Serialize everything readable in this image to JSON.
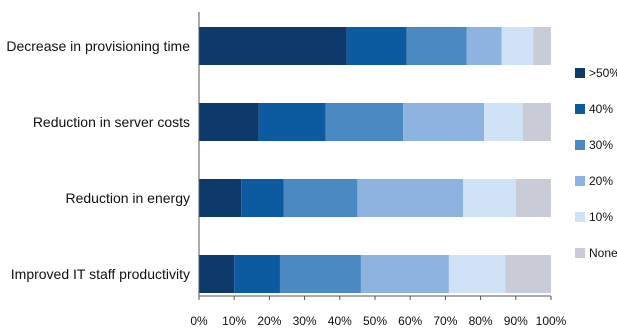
{
  "chart_data": {
    "type": "bar",
    "orientation": "horizontal",
    "stacked": true,
    "categories": [
      "Decrease in provisioning time",
      "Reduction in server costs",
      "Reduction in energy",
      "Improved IT staff productivity"
    ],
    "series": [
      {
        "name": ">50%",
        "color": "#0d3a6b",
        "values": [
          42,
          17,
          12,
          10
        ]
      },
      {
        "name": "40%",
        "color": "#0c5aa0",
        "values": [
          17,
          19,
          12,
          13
        ]
      },
      {
        "name": "30%",
        "color": "#4a89c2",
        "values": [
          17,
          22,
          21,
          23
        ]
      },
      {
        "name": "20%",
        "color": "#8fb3e0",
        "values": [
          10,
          23,
          30,
          25
        ]
      },
      {
        "name": "10%",
        "color": "#cfe2f6",
        "values": [
          9,
          11,
          15,
          16
        ]
      },
      {
        "name": "None",
        "color": "#c9ccd6",
        "values": [
          5,
          8,
          10,
          13
        ]
      }
    ],
    "xlim": [
      0,
      100
    ],
    "x_ticks": [
      "0%",
      "10%",
      "20%",
      "30%",
      "40%",
      "50%",
      "60%",
      "70%",
      "80%",
      "90%",
      "100%"
    ],
    "legend_position": "right",
    "grid": false,
    "title": "",
    "xlabel": "",
    "ylabel": ""
  }
}
